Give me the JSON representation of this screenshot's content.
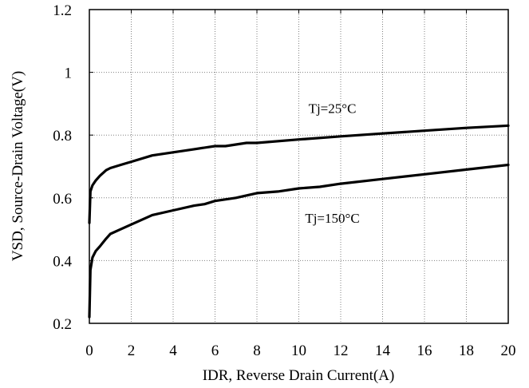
{
  "chart_data": {
    "type": "line",
    "xlabel": "IDR, Reverse Drain Current(A)",
    "ylabel": "VSD, Source-Drain Voltage(V)",
    "xlim": [
      0,
      20
    ],
    "ylim": [
      0.2,
      1.2
    ],
    "x_ticks": [
      "0",
      "2",
      "4",
      "6",
      "8",
      "10",
      "12",
      "14",
      "16",
      "18",
      "20"
    ],
    "y_ticks": [
      "0.2",
      "0.4",
      "0.6",
      "0.8",
      "1",
      "1.2"
    ],
    "grid": true,
    "series": [
      {
        "name": "Tj=25°C",
        "x": [
          0,
          0.05,
          0.15,
          0.3,
          0.5,
          0.8,
          1.0,
          1.5,
          2,
          3,
          4,
          5,
          6,
          6.5,
          7.5,
          8,
          10,
          12,
          14,
          16,
          18,
          20
        ],
        "y": [
          0.52,
          0.62,
          0.64,
          0.655,
          0.67,
          0.688,
          0.695,
          0.705,
          0.715,
          0.735,
          0.745,
          0.755,
          0.765,
          0.765,
          0.775,
          0.775,
          0.786,
          0.796,
          0.805,
          0.814,
          0.823,
          0.83
        ]
      },
      {
        "name": "Tj=150°C",
        "x": [
          0,
          0.05,
          0.15,
          0.3,
          0.5,
          0.8,
          1.0,
          1.5,
          2,
          3,
          4,
          5,
          5.5,
          6,
          7,
          8,
          9,
          10,
          11,
          12,
          14,
          16,
          18,
          20
        ],
        "y": [
          0.22,
          0.37,
          0.41,
          0.43,
          0.445,
          0.47,
          0.485,
          0.5,
          0.515,
          0.545,
          0.56,
          0.575,
          0.58,
          0.59,
          0.6,
          0.615,
          0.62,
          0.63,
          0.635,
          0.645,
          0.66,
          0.675,
          0.69,
          0.705
        ]
      }
    ],
    "annotations": [
      {
        "text": "Tj=25°C",
        "x": 11.6,
        "y": 0.87
      },
      {
        "text": "Tj=150°C",
        "x": 11.6,
        "y": 0.52
      }
    ]
  }
}
